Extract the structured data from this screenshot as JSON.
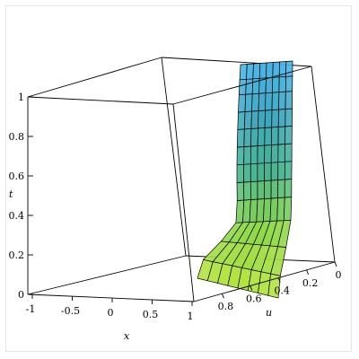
{
  "chart_data": {
    "type": "surface3d",
    "title": "",
    "t_axis": {
      "label": "t",
      "ticks": [
        "0",
        "0.2",
        "0.4",
        "0.6",
        "0.8",
        "1"
      ],
      "range": [
        0,
        1
      ]
    },
    "x_axis": {
      "label": "x",
      "ticks": [
        "-1",
        "-0.5",
        "0",
        "0.5",
        "1"
      ],
      "range": [
        -1,
        1
      ]
    },
    "u_axis": {
      "label": "u",
      "ticks": [
        "0.8",
        "0.6",
        "0.4",
        "0.2",
        "0"
      ],
      "range": [
        0,
        1
      ]
    },
    "colormap": [
      "#b9e53f",
      "#8fd84a",
      "#48b48f",
      "#3fa8bf",
      "#49b6ea"
    ],
    "mesh_color": "#000000",
    "grid": false
  }
}
